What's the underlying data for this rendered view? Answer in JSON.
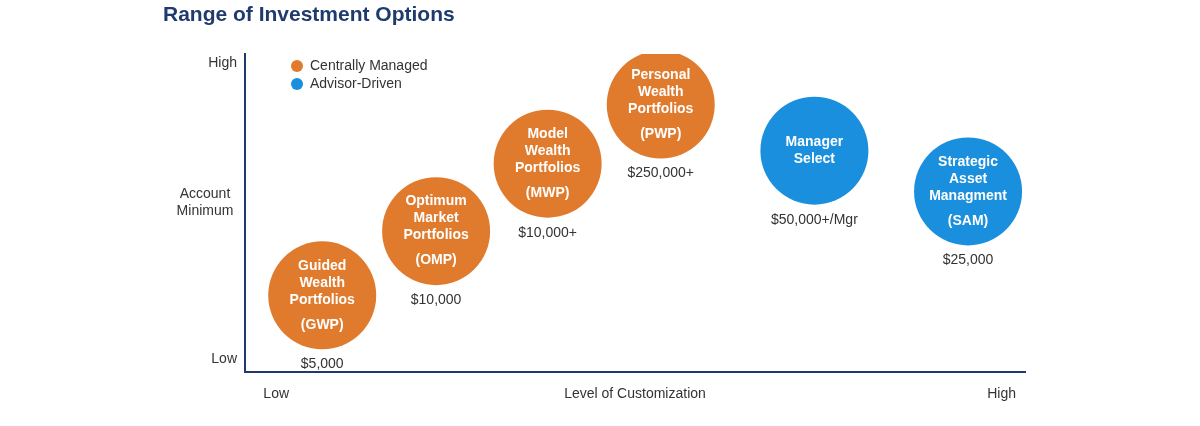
{
  "chart_data": {
    "type": "bubble",
    "title": "Range of Investment Options",
    "x_label": "Level of Customization",
    "y_label": "Account Minimum",
    "xlim": [
      0,
      100
    ],
    "ylim": [
      0,
      100
    ],
    "xticks": [
      {
        "value": 4,
        "label": "Low"
      },
      {
        "value": 97,
        "label": "High"
      }
    ],
    "yticks": [
      {
        "value": 4,
        "label": "Low"
      },
      {
        "value": 97,
        "label": "High"
      }
    ],
    "grid": false,
    "legend": "top-left",
    "series": [
      {
        "name": "Centrally Managed",
        "color": "#e07b2e",
        "points": [
          {
            "x": 9.9,
            "y": 24.1,
            "label": [
              "Guided",
              "Wealth",
              "Portfolios"
            ],
            "abbr": "(GWP)",
            "minimum": "$5,000"
          },
          {
            "x": 24.5,
            "y": 44.3,
            "label": [
              "Optimum",
              "Market",
              "Portfolios"
            ],
            "abbr": "(OMP)",
            "minimum": "$10,000"
          },
          {
            "x": 38.8,
            "y": 65.5,
            "label": [
              "Model",
              "Wealth",
              "Portfolios"
            ],
            "abbr": "(MWP)",
            "minimum": "$10,000+"
          },
          {
            "x": 53.3,
            "y": 84.1,
            "label": [
              "Personal",
              "Wealth",
              "Portfolios"
            ],
            "abbr": "(PWP)",
            "minimum": "$250,000+"
          }
        ]
      },
      {
        "name": "Advisor-Driven",
        "color": "#1a8fdd",
        "points": [
          {
            "x": 73.0,
            "y": 69.6,
            "label": [
              "Manager",
              "Select"
            ],
            "minimum": "$50,000+/Mgr"
          },
          {
            "x": 92.7,
            "y": 56.8,
            "label": [
              "Strategic",
              "Asset",
              "Managment"
            ],
            "abbr": "(SAM)",
            "minimum": "$25,000"
          }
        ]
      }
    ]
  }
}
